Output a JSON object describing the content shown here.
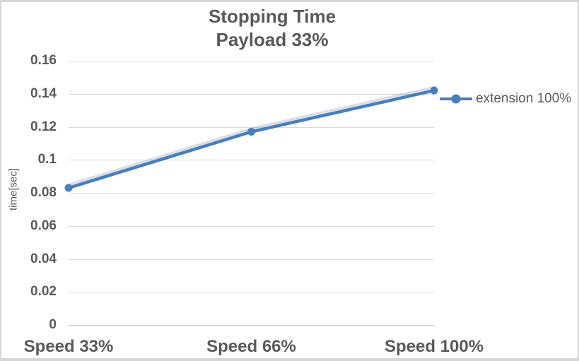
{
  "title": {
    "line1": "Stopping Time",
    "line2": "Payload 33%"
  },
  "y_axis": {
    "title": "time[sec]",
    "tick_labels": [
      "0.16",
      "0.14",
      "0.12",
      "0.1",
      "0.08",
      "0.06",
      "0.04",
      "0.02",
      "0"
    ]
  },
  "x_axis": {
    "labels": [
      "Speed 33%",
      "Speed 66%",
      "Speed 100%"
    ]
  },
  "legend": {
    "label": "extension 100%"
  },
  "colors": {
    "series": "#4a7ebb",
    "series_shadow": "rgba(110,135,175,0.28)",
    "text": "#595959",
    "gridline": "#d9d9d9",
    "axis_line": "#c6c6c6"
  },
  "chart_data": {
    "type": "line",
    "title": "Stopping Time Payload 33%",
    "categories": [
      "Speed 33%",
      "Speed 66%",
      "Speed 100%"
    ],
    "series": [
      {
        "name": "extension 100%",
        "values": [
          0.083,
          0.117,
          0.142
        ],
        "color": "#4a7ebb"
      }
    ],
    "xlabel": "",
    "ylabel": "time[sec]",
    "ylim": [
      0,
      0.16
    ],
    "ytick_step": 0.02,
    "grid": true,
    "legend_position": "right",
    "marker": "circle"
  }
}
